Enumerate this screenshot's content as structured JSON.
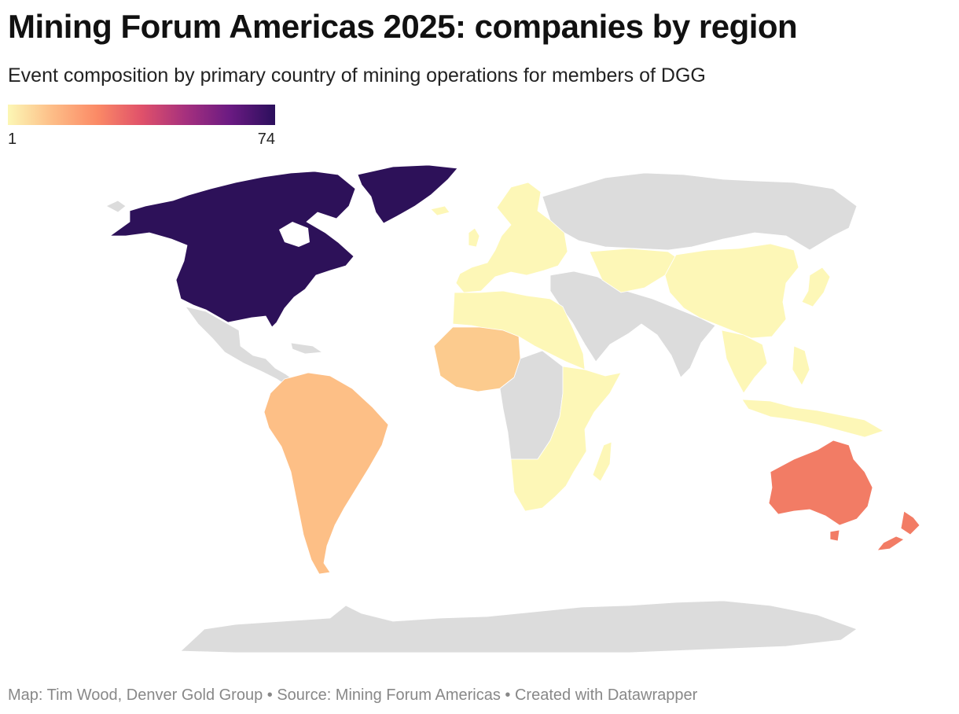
{
  "title": "Mining Forum Americas 2025: companies by region",
  "subtitle": "Event composition by primary country of mining operations for members of DGG",
  "legend": {
    "min_label": "1",
    "max_label": "74",
    "min_value": 1,
    "max_value": 74,
    "stops": [
      "#fcf7b5",
      "#fdbd87",
      "#fb8a66",
      "#e0516a",
      "#a5307e",
      "#6a1a82",
      "#2b0f5c"
    ]
  },
  "colors": {
    "no_data": "#dcdcdc",
    "north_america": "#2d1159",
    "south_america": "#fdbf86",
    "west_africa": "#fccb8e",
    "australia_nz": "#f27c65",
    "low_value": "#fdf7b7"
  },
  "regions": [
    {
      "name": "North America",
      "value_level": "max"
    },
    {
      "name": "South America",
      "value_level": "mid-low"
    },
    {
      "name": "West Africa",
      "value_level": "mid-low"
    },
    {
      "name": "Australia & New Zealand",
      "value_level": "mid"
    },
    {
      "name": "Europe",
      "value_level": "low"
    },
    {
      "name": "Asia",
      "value_level": "low"
    },
    {
      "name": "East & Southern Africa",
      "value_level": "low"
    }
  ],
  "footer": "Map: Tim Wood, Denver Gold Group • Source: Mining Forum Americas • Created with Datawrapper"
}
